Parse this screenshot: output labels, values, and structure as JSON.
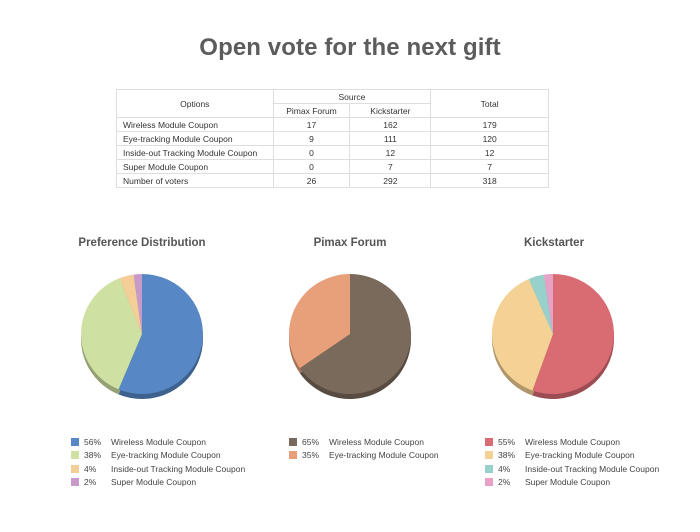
{
  "title": "Open vote for the next gift",
  "table": {
    "options_header": "Options",
    "source_header": "Source",
    "total_header": "Total",
    "sub_headers": [
      "Pimax Forum",
      "Kickstarter"
    ],
    "rows": [
      {
        "label": "Wireless Module Coupon",
        "forum": "17",
        "kick": "162",
        "total": "179"
      },
      {
        "label": "Eye-tracking Module Coupon",
        "forum": "9",
        "kick": "111",
        "total": "120"
      },
      {
        "label": "Inside-out Tracking Module Coupon",
        "forum": "0",
        "kick": "12",
        "total": "12"
      },
      {
        "label": "Super Module Coupon",
        "forum": "0",
        "kick": "7",
        "total": "7"
      },
      {
        "label": "Number of voters",
        "forum": "26",
        "kick": "292",
        "total": "318"
      }
    ]
  },
  "colors": {
    "wireless_pref": "#5787c4",
    "eye_pref": "#cfe0a3",
    "inside_pref": "#f5cd96",
    "super_pref": "#c79ac9",
    "wireless_forum": "#7a6a5b",
    "eye_forum": "#e7a07a",
    "wireless_kick": "#d96b73",
    "eye_kick": "#f4d295",
    "inside_kick": "#98d1cc",
    "super_kick": "#e7a1c5"
  },
  "chart_data": [
    {
      "type": "pie",
      "title": "Preference Distribution",
      "slices": [
        {
          "name": "Wireless Module Coupon",
          "value": 179,
          "label": "56%",
          "color": "#5787c4"
        },
        {
          "name": "Eye-tracking Module Coupon",
          "value": 120,
          "label": "38%",
          "color": "#cfe0a3"
        },
        {
          "name": "Inside-out Tracking Module Coupon",
          "value": 12,
          "label": "4%",
          "color": "#f5cd96"
        },
        {
          "name": "Super Module Coupon",
          "value": 7,
          "label": "2%",
          "color": "#c79ac9"
        }
      ],
      "legend": "bottom"
    },
    {
      "type": "pie",
      "title": "Pimax Forum",
      "slices": [
        {
          "name": "Wireless Module Coupon",
          "value": 17,
          "label": "65%",
          "color": "#7a6a5b"
        },
        {
          "name": "Eye-tracking Module Coupon",
          "value": 9,
          "label": "35%",
          "color": "#e7a07a"
        }
      ],
      "legend": "bottom"
    },
    {
      "type": "pie",
      "title": "Kickstarter",
      "slices": [
        {
          "name": "Wireless Module Coupon",
          "value": 162,
          "label": "55%",
          "color": "#d96b73"
        },
        {
          "name": "Eye-tracking Module Coupon",
          "value": 111,
          "label": "38%",
          "color": "#f4d295"
        },
        {
          "name": "Inside-out Tracking Module Coupon",
          "value": 12,
          "label": "4%",
          "color": "#98d1cc"
        },
        {
          "name": "Super Module Coupon",
          "value": 7,
          "label": "2%",
          "color": "#e7a1c5"
        }
      ],
      "legend": "bottom"
    }
  ]
}
